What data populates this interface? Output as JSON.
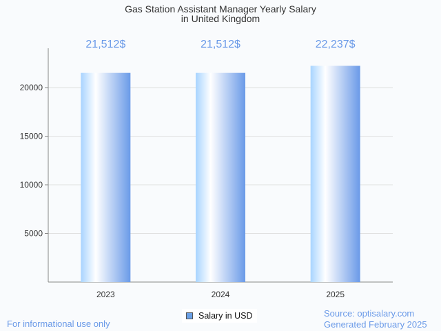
{
  "chart_data": {
    "type": "bar",
    "title": "Gas Station Assistant Manager Yearly Salary",
    "subtitle": "in United Kingdom",
    "categories": [
      "2023",
      "2024",
      "2025"
    ],
    "values": [
      21512,
      21512,
      22237
    ],
    "data_labels": [
      "21,512$",
      "21,512$",
      "22,237$"
    ],
    "yticks": [
      5000,
      10000,
      15000,
      20000
    ],
    "ylim": [
      0,
      24000
    ],
    "grid": true,
    "legend": {
      "label": "Salary in USD",
      "placement": "bottom"
    },
    "xlabel": "",
    "ylabel": ""
  },
  "footer": {
    "left": "For informational use only",
    "source": "Source: optisalary.com",
    "generated": "Generated February 2025"
  },
  "colors": {
    "label": "#6a9ae8",
    "bar_start": "#a8d4ff",
    "bar_end": "#6a9ae8"
  }
}
